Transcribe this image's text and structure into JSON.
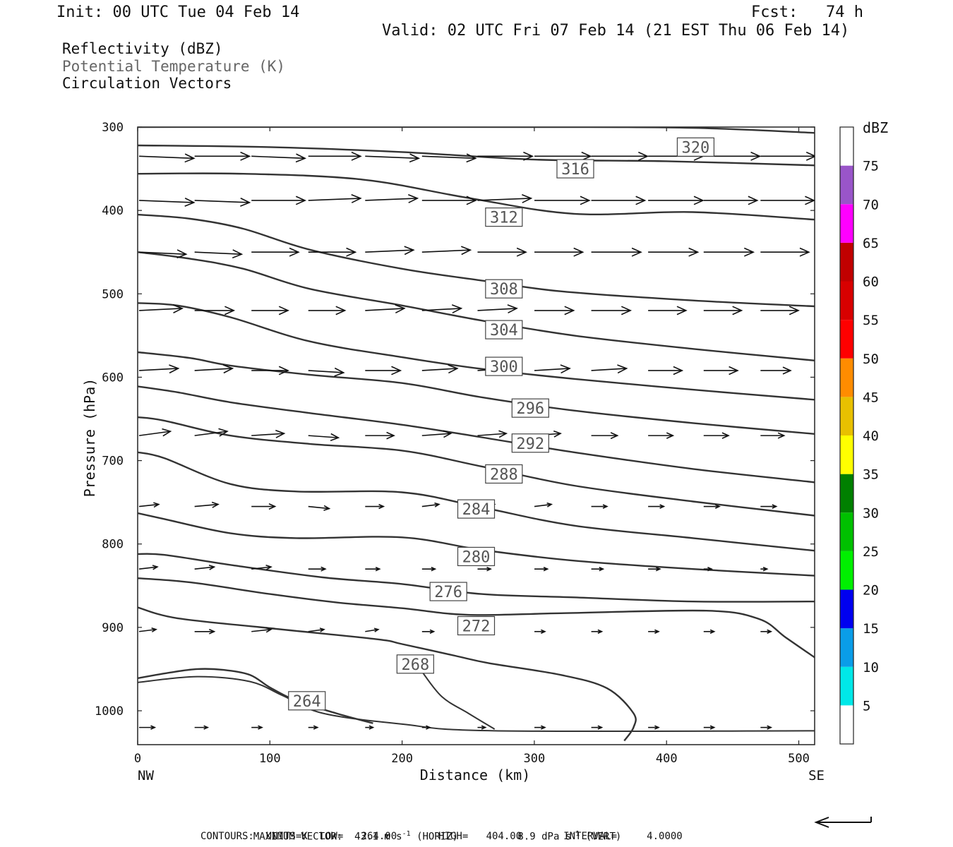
{
  "header": {
    "init": "Init: 00 UTC Tue 04 Feb 14",
    "fcst": "Fcst:   74 h",
    "valid": "Valid: 02 UTC Fri 07 Feb 14 (21 EST Thu 06 Feb 14)"
  },
  "legend_text": {
    "line1": "Reflectivity (dBZ)",
    "line2": "Potential Temperature (K)",
    "line3": "Circulation Vectors"
  },
  "footer": {
    "max_vector_label": "MAXIMUM VECTOR:",
    "horiz": "43.1 m s",
    "horiz_sup": "-1",
    "horiz_tag": "(HORIZ)",
    "vert": "8.9 dPa s",
    "vert_sup": "-1",
    "vert_tag": "(VERT)",
    "contours": "CONTOURS:  UNITS=K  LOW=   264.00       HIGH=   404.00       INTERVAL=     4.0000"
  },
  "colors": {
    "contour": "#333333",
    "label_temp_gray": "#666666"
  },
  "chart_data": {
    "type": "cross-section",
    "ylabel": "Pressure (hPa)",
    "xlabel": "Distance (km)",
    "x_end_labels": {
      "left": "NW",
      "right": "SE"
    },
    "xlim": [
      0,
      512
    ],
    "ylim": [
      300,
      1040
    ],
    "y_inverted": true,
    "x_ticks": [
      0,
      100,
      200,
      300,
      400,
      500
    ],
    "y_ticks": [
      300,
      400,
      500,
      600,
      700,
      800,
      900,
      1000
    ],
    "colorbar": {
      "title": "dBZ",
      "labels": [
        5,
        10,
        15,
        20,
        25,
        30,
        35,
        40,
        45,
        50,
        55,
        60,
        65,
        70,
        75
      ],
      "bins": [
        {
          "from": 0,
          "to": 5,
          "color": "#ffffff"
        },
        {
          "from": 5,
          "to": 10,
          "color": "#00e8e8"
        },
        {
          "from": 10,
          "to": 15,
          "color": "#0a9de8"
        },
        {
          "from": 15,
          "to": 20,
          "color": "#0000f0"
        },
        {
          "from": 20,
          "to": 25,
          "color": "#00f000"
        },
        {
          "from": 25,
          "to": 30,
          "color": "#00c000"
        },
        {
          "from": 30,
          "to": 35,
          "color": "#008000"
        },
        {
          "from": 35,
          "to": 40,
          "color": "#ffff00"
        },
        {
          "from": 40,
          "to": 45,
          "color": "#e8c000"
        },
        {
          "from": 45,
          "to": 50,
          "color": "#ff8c00"
        },
        {
          "from": 50,
          "to": 55,
          "color": "#ff0000"
        },
        {
          "from": 55,
          "to": 60,
          "color": "#d80000"
        },
        {
          "from": 60,
          "to": 65,
          "color": "#c00000"
        },
        {
          "from": 65,
          "to": 70,
          "color": "#ff00ff"
        },
        {
          "from": 70,
          "to": 75,
          "color": "#9955c9"
        },
        {
          "from": 75,
          "to": 80,
          "color": "#ffffff"
        }
      ]
    },
    "contours": [
      {
        "level": 320,
        "label": "320",
        "label_at": [
          422,
          324
        ],
        "points": [
          [
            0,
            300
          ],
          [
            300,
            300
          ],
          [
            420,
            301
          ],
          [
            512,
            307
          ]
        ]
      },
      {
        "level": 316,
        "label": "316",
        "label_at": [
          331,
          350
        ],
        "points": [
          [
            0,
            322
          ],
          [
            100,
            324
          ],
          [
            200,
            330
          ],
          [
            300,
            339
          ],
          [
            400,
            341
          ],
          [
            512,
            346
          ]
        ]
      },
      {
        "level": 312,
        "label": "312",
        "label_at": [
          277,
          408
        ],
        "points": [
          [
            0,
            356
          ],
          [
            80,
            356
          ],
          [
            170,
            363
          ],
          [
            250,
            385
          ],
          [
            330,
            404
          ],
          [
            420,
            402
          ],
          [
            512,
            411
          ]
        ]
      },
      {
        "level": 308,
        "label": "308",
        "label_at": [
          277,
          494
        ],
        "points": [
          [
            0,
            405
          ],
          [
            40,
            410
          ],
          [
            80,
            422
          ],
          [
            130,
            447
          ],
          [
            200,
            470
          ],
          [
            260,
            484
          ],
          [
            320,
            497
          ],
          [
            420,
            508
          ],
          [
            512,
            515
          ]
        ]
      },
      {
        "level": 304,
        "label": "304",
        "label_at": [
          277,
          543
        ],
        "points": [
          [
            0,
            450
          ],
          [
            40,
            458
          ],
          [
            80,
            470
          ],
          [
            130,
            494
          ],
          [
            200,
            514
          ],
          [
            260,
            532
          ],
          [
            330,
            550
          ],
          [
            420,
            566
          ],
          [
            512,
            580
          ]
        ]
      },
      {
        "level": 300,
        "label": "300",
        "label_at": [
          277,
          587
        ],
        "points": [
          [
            0,
            511
          ],
          [
            30,
            514
          ],
          [
            70,
            528
          ],
          [
            130,
            557
          ],
          [
            200,
            576
          ],
          [
            260,
            590
          ],
          [
            330,
            602
          ],
          [
            420,
            615
          ],
          [
            512,
            627
          ]
        ]
      },
      {
        "level": 296,
        "label": "296",
        "label_at": [
          297,
          637
        ],
        "points": [
          [
            0,
            570
          ],
          [
            40,
            577
          ],
          [
            70,
            586
          ],
          [
            130,
            597
          ],
          [
            200,
            607
          ],
          [
            260,
            624
          ],
          [
            330,
            640
          ],
          [
            420,
            655
          ],
          [
            512,
            668
          ]
        ]
      },
      {
        "level": 292,
        "label": "292",
        "label_at": [
          297,
          679
        ],
        "points": [
          [
            0,
            611
          ],
          [
            30,
            618
          ],
          [
            70,
            630
          ],
          [
            130,
            643
          ],
          [
            200,
            657
          ],
          [
            260,
            672
          ],
          [
            330,
            690
          ],
          [
            420,
            710
          ],
          [
            512,
            726
          ]
        ]
      },
      {
        "level": 288,
        "label": "288",
        "label_at": [
          277,
          716
        ],
        "points": [
          [
            0,
            648
          ],
          [
            20,
            652
          ],
          [
            70,
            670
          ],
          [
            130,
            680
          ],
          [
            200,
            688
          ],
          [
            260,
            707
          ],
          [
            330,
            730
          ],
          [
            420,
            749
          ],
          [
            512,
            766
          ]
        ]
      },
      {
        "level": 284,
        "label": "284",
        "label_at": [
          256,
          758
        ],
        "points": [
          [
            0,
            690
          ],
          [
            20,
            697
          ],
          [
            70,
            728
          ],
          [
            120,
            737
          ],
          [
            200,
            738
          ],
          [
            260,
            756
          ],
          [
            330,
            778
          ],
          [
            420,
            793
          ],
          [
            512,
            808
          ]
        ]
      },
      {
        "level": 280,
        "label": "280",
        "label_at": [
          256,
          815
        ],
        "points": [
          [
            0,
            763
          ],
          [
            20,
            770
          ],
          [
            70,
            787
          ],
          [
            120,
            793
          ],
          [
            200,
            792
          ],
          [
            260,
            807
          ],
          [
            330,
            820
          ],
          [
            420,
            830
          ],
          [
            512,
            838
          ]
        ]
      },
      {
        "level": 276,
        "label": "276",
        "label_at": [
          235,
          857
        ],
        "points": [
          [
            0,
            812
          ],
          [
            20,
            813
          ],
          [
            70,
            825
          ],
          [
            140,
            840
          ],
          [
            200,
            848
          ],
          [
            260,
            860
          ],
          [
            330,
            864
          ],
          [
            420,
            869
          ],
          [
            512,
            869
          ]
        ]
      },
      {
        "level": 272,
        "label": "272",
        "label_at": [
          256,
          898
        ],
        "points": [
          [
            0,
            841
          ],
          [
            40,
            846
          ],
          [
            100,
            860
          ],
          [
            150,
            870
          ],
          [
            200,
            877
          ],
          [
            250,
            885
          ],
          [
            320,
            883
          ],
          [
            430,
            880
          ],
          [
            470,
            890
          ],
          [
            490,
            912
          ],
          [
            512,
            936
          ]
        ]
      },
      {
        "level": 268,
        "label": "268",
        "label_at": [
          210,
          944
        ],
        "points": [
          [
            0,
            876
          ],
          [
            30,
            889
          ],
          [
            100,
            901
          ],
          [
            180,
            914
          ],
          [
            200,
            920
          ],
          [
            240,
            934
          ],
          [
            266,
            943
          ],
          [
            320,
            957
          ],
          [
            355,
            973
          ],
          [
            375,
            1003
          ],
          [
            375,
            1020
          ],
          [
            368,
            1036
          ]
        ]
      },
      {
        "level": 264,
        "label": "264",
        "label_at": [
          128,
          988
        ],
        "points": [
          [
            0,
            961
          ],
          [
            25,
            954
          ],
          [
            45,
            950
          ],
          [
            65,
            951
          ],
          [
            85,
            957
          ],
          [
            100,
            972
          ],
          [
            120,
            988
          ],
          [
            150,
            1003
          ],
          [
            178,
            1015
          ]
        ]
      }
    ],
    "extra_boundaries": [
      {
        "points": [
          [
            0,
            966
          ],
          [
            45,
            959
          ],
          [
            85,
            965
          ],
          [
            110,
            982
          ],
          [
            140,
            1003
          ],
          [
            200,
            1016
          ],
          [
            270,
            1024
          ],
          [
            512,
            1024
          ]
        ]
      },
      {
        "points": [
          [
            215,
            953
          ],
          [
            230,
            983
          ],
          [
            250,
            1003
          ],
          [
            270,
            1022
          ]
        ]
      }
    ],
    "vectors": [
      {
        "p": 335,
        "x": [
          0,
          42,
          85,
          128,
          171,
          214,
          256,
          299,
          342,
          385,
          427,
          470
        ],
        "u": [
          42,
          42,
          41,
          40,
          41,
          41,
          42,
          43,
          43,
          42,
          43,
          42
        ],
        "w": [
          -1,
          0,
          -1,
          0,
          -1,
          -1,
          0,
          0,
          0,
          0,
          0,
          0
        ]
      },
      {
        "p": 388,
        "x": [
          0,
          42,
          85,
          128,
          171,
          214,
          256,
          299,
          342,
          385,
          427,
          470
        ],
        "u": [
          42,
          42,
          41,
          40,
          40,
          41,
          41,
          42,
          41,
          42,
          41,
          41
        ],
        "w": [
          -1,
          -1,
          0,
          1,
          1,
          0,
          1,
          0,
          0,
          0,
          0,
          0
        ]
      },
      {
        "p": 450,
        "x": [
          0,
          42,
          85,
          128,
          171,
          214,
          256,
          299,
          342,
          385,
          427,
          470
        ],
        "u": [
          36,
          36,
          36,
          36,
          37,
          37,
          37,
          37,
          38,
          38,
          38,
          37
        ],
        "w": [
          -1,
          -1,
          0,
          0,
          1,
          1,
          0,
          0,
          0,
          0,
          0,
          0
        ]
      },
      {
        "p": 520,
        "x": [
          0,
          42,
          85,
          128,
          171,
          214,
          256,
          299,
          342,
          385,
          427,
          470
        ],
        "u": [
          33,
          30,
          28,
          28,
          30,
          30,
          30,
          30,
          30,
          29,
          29,
          29
        ],
        "w": [
          1,
          0,
          0,
          0,
          1,
          1,
          1,
          0,
          0,
          0,
          0,
          0
        ]
      },
      {
        "p": 592,
        "x": [
          0,
          42,
          85,
          128,
          171,
          214,
          256,
          299,
          342,
          385,
          427,
          470
        ],
        "u": [
          30,
          29,
          28,
          27,
          27,
          27,
          27,
          27,
          27,
          26,
          26,
          23
        ],
        "w": [
          1,
          1,
          0,
          -1,
          0,
          1,
          1,
          1,
          1,
          0,
          0,
          0
        ]
      },
      {
        "p": 670,
        "x": [
          0,
          42,
          85,
          128,
          171,
          214,
          256,
          299,
          342,
          385,
          427,
          470
        ],
        "u": [
          24,
          25,
          25,
          23,
          22,
          22,
          22,
          20,
          20,
          19,
          19,
          18
        ],
        "w": [
          2,
          2,
          1,
          -1,
          0,
          1,
          1,
          1,
          0,
          0,
          0,
          0
        ]
      },
      {
        "p": 755,
        "x": [
          0,
          42,
          85,
          128,
          171,
          214,
          256,
          299,
          342,
          385,
          427,
          470
        ],
        "u": [
          15,
          18,
          18,
          16,
          14,
          13,
          13,
          13,
          12,
          12,
          12,
          12
        ],
        "w": [
          1,
          1,
          0,
          -1,
          0,
          1,
          1,
          1,
          0,
          0,
          0,
          0
        ]
      },
      {
        "p": 830,
        "x": [
          0,
          42,
          85,
          128,
          171,
          214,
          256,
          299,
          342,
          385,
          427,
          470
        ],
        "u": [
          14,
          15,
          15,
          13,
          11,
          10,
          10,
          10,
          9,
          9,
          6,
          5
        ],
        "w": [
          1,
          1,
          1,
          0,
          0,
          0,
          0,
          0,
          0,
          0,
          0,
          0
        ]
      },
      {
        "p": 905,
        "x": [
          0,
          42,
          85,
          128,
          171,
          214,
          256,
          299,
          342,
          385,
          427,
          470
        ],
        "u": [
          13,
          15,
          15,
          12,
          10,
          9,
          8,
          8,
          8,
          8,
          8,
          8
        ],
        "w": [
          1,
          0,
          1,
          1,
          1,
          0,
          0,
          0,
          0,
          0,
          0,
          0
        ]
      },
      {
        "p": 1020,
        "x": [
          0,
          42,
          85,
          128,
          171,
          214,
          256,
          299,
          342,
          385,
          427,
          470
        ],
        "u": [
          12,
          10,
          8,
          7,
          6,
          6,
          6,
          8,
          8,
          8,
          8,
          8
        ],
        "w": [
          0,
          0,
          0,
          0,
          0,
          0,
          0,
          0,
          0,
          0,
          0,
          0
        ]
      }
    ]
  }
}
